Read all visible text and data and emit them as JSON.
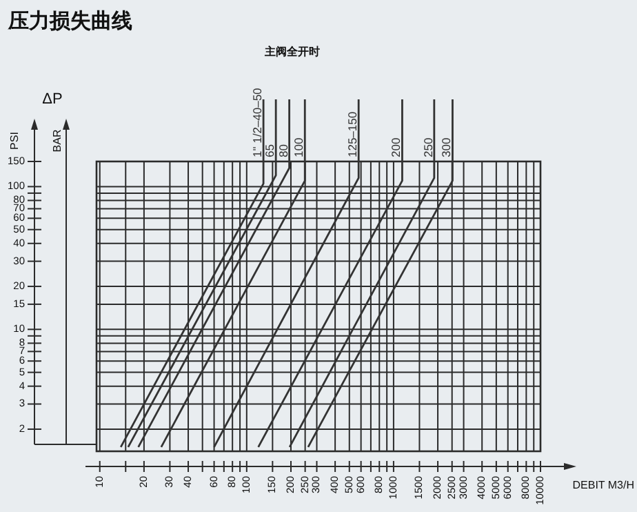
{
  "chart_data": {
    "type": "line",
    "title": "压力损失曲线",
    "xlabel": "DEBIT M3/H",
    "ylabel": "PSI",
    "y2label": "BAR",
    "annotations": [
      "ΔP",
      "主阀全开时"
    ],
    "log": "xy",
    "grid": true,
    "line_style": "solid",
    "marker": "none",
    "xlim": [
      9.5,
      10000
    ],
    "ylim": [
      1.4,
      150
    ],
    "xticks": [
      10,
      {
        "value": 15,
        "label": null
      },
      20,
      30,
      40,
      {
        "value": 50,
        "label": null
      },
      60,
      {
        "value": 70,
        "label": null
      },
      80,
      {
        "value": 90,
        "label": null
      },
      100,
      150,
      200,
      250,
      300,
      400,
      500,
      600,
      {
        "value": 700,
        "label": null
      },
      800,
      {
        "value": 900,
        "label": null
      },
      1000,
      1500,
      2000,
      2500,
      3000,
      4000,
      5000,
      6000,
      {
        "value": 7000,
        "label": null
      },
      8000,
      {
        "value": 9000,
        "label": null
      },
      10000
    ],
    "yticks": [
      2,
      3,
      4,
      5,
      6,
      7,
      8,
      {
        "value": 9,
        "label": null
      },
      10,
      15,
      20,
      30,
      40,
      50,
      60,
      70,
      80,
      {
        "value": 90,
        "label": null
      },
      100,
      150
    ],
    "series": [
      {
        "name": "1\" 1/2–40–50",
        "color": "#333333",
        "x": [
          13.9,
          130
        ],
        "values": [
          1.5,
          105
        ]
      },
      {
        "name": "65",
        "color": "#333333",
        "x": [
          15.6,
          158
        ],
        "values": [
          1.5,
          120
        ]
      },
      {
        "name": "80",
        "color": "#333333",
        "x": [
          18.3,
          195
        ],
        "values": [
          1.5,
          135
        ]
      },
      {
        "name": "100",
        "color": "#333333",
        "x": [
          26.2,
          249
        ],
        "values": [
          1.5,
          110
        ]
      },
      {
        "name": "125–150",
        "color": "#333333",
        "x": [
          60,
          578
        ],
        "values": [
          1.5,
          115
        ]
      },
      {
        "name": "200",
        "color": "#333333",
        "x": [
          120,
          1145
        ],
        "values": [
          1.5,
          110
        ]
      },
      {
        "name": "250",
        "color": "#333333",
        "x": [
          196,
          1890
        ],
        "values": [
          1.5,
          115
        ]
      },
      {
        "name": "300",
        "color": "#333333",
        "x": [
          262,
          2520
        ],
        "values": [
          1.5,
          110
        ]
      }
    ]
  }
}
